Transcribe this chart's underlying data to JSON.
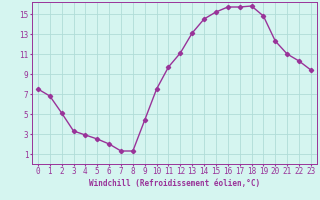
{
  "x": [
    0,
    1,
    2,
    3,
    4,
    5,
    6,
    7,
    8,
    9,
    10,
    11,
    12,
    13,
    14,
    15,
    16,
    17,
    18,
    19,
    20,
    21,
    22,
    23
  ],
  "y": [
    7.5,
    6.8,
    5.1,
    3.3,
    2.9,
    2.5,
    2.0,
    1.3,
    1.3,
    4.4,
    7.5,
    9.7,
    11.1,
    13.1,
    14.5,
    15.2,
    15.7,
    15.7,
    15.8,
    14.8,
    12.3,
    11.0,
    10.3,
    9.4
  ],
  "line_color": "#993399",
  "marker": "D",
  "marker_size": 2.2,
  "bg_color": "#d5f5f0",
  "grid_color": "#b0ddd8",
  "xlabel": "Windchill (Refroidissement éolien,°C)",
  "xlim": [
    -0.5,
    23.5
  ],
  "ylim": [
    0,
    16.2
  ],
  "xticks": [
    0,
    1,
    2,
    3,
    4,
    5,
    6,
    7,
    8,
    9,
    10,
    11,
    12,
    13,
    14,
    15,
    16,
    17,
    18,
    19,
    20,
    21,
    22,
    23
  ],
  "yticks": [
    1,
    3,
    5,
    7,
    9,
    11,
    13,
    15
  ],
  "xlabel_fontsize": 5.5,
  "tick_fontsize": 5.5,
  "line_width": 1.0,
  "axis_color": "#993399"
}
